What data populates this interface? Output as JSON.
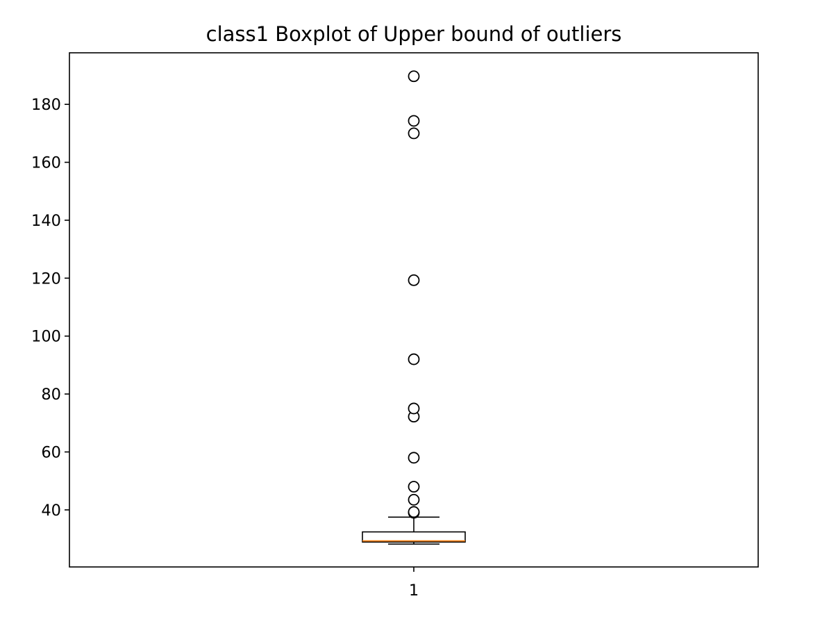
{
  "chart_data": {
    "type": "boxplot",
    "title": "class1 Boxplot of Upper bound of outliers",
    "xlabel": "",
    "ylabel": "",
    "categories": [
      "1"
    ],
    "ylim": [
      20.3,
      197.8
    ],
    "yticks": [
      40,
      60,
      80,
      100,
      120,
      140,
      160,
      180
    ],
    "grid": false,
    "boxes": [
      {
        "category": "1",
        "whisker_low": 28.2,
        "q1": 28.9,
        "median": 29.3,
        "q3": 32.4,
        "whisker_high": 37.5,
        "outliers": [
          39.0,
          39.3,
          43.5,
          48.0,
          58.0,
          72.2,
          75.0,
          92.0,
          119.3,
          170.0,
          174.3,
          189.7
        ]
      }
    ],
    "colors": {
      "box": "#000000",
      "median": "#ff7f0e",
      "outlier_edge": "#000000",
      "outlier_fill": "#ffffff",
      "background": "#ffffff"
    }
  }
}
